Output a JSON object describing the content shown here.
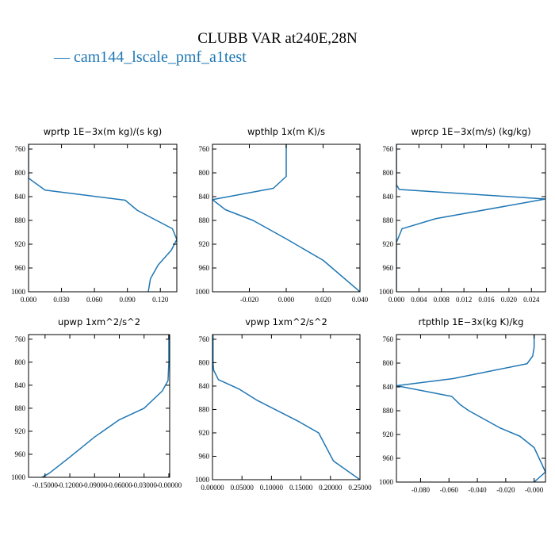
{
  "title": "CLUBB VAR at240E,28N",
  "legend": {
    "label": "— cam144_lscale_pmf_a1test",
    "color": "#1f77b4"
  },
  "chart_data": [
    {
      "type": "line",
      "title": "wprtp  1E−3x(m kg)/(s kg)",
      "xlim": [
        0.0,
        0.135
      ],
      "ylim": [
        1000,
        752
      ],
      "y_inverted": true,
      "xticks": [
        0.0,
        0.03,
        0.06,
        0.09,
        0.12
      ],
      "xtick_labels": [
        "0.000",
        "0.030",
        "0.060",
        "0.090",
        "0.120"
      ],
      "yticks": [
        760,
        800,
        840,
        880,
        920,
        960,
        1000
      ],
      "ytick_labels": [
        "760",
        "800",
        "840",
        "880",
        "920",
        "960",
        "1000"
      ],
      "series": [
        {
          "color": "#1f77b4",
          "x": [
            0.0,
            0.0,
            0.0,
            0.015,
            0.088,
            0.099,
            0.131,
            0.135,
            0.13,
            0.118,
            0.111,
            0.109
          ],
          "y": [
            752,
            780,
            809,
            829,
            846,
            863,
            894,
            912,
            930,
            955,
            978,
            1000
          ]
        }
      ]
    },
    {
      "type": "line",
      "title": "wpthlp  1x(m K)/s",
      "xlim": [
        -0.04,
        0.04
      ],
      "ylim": [
        1000,
        752
      ],
      "y_inverted": true,
      "xticks": [
        -0.02,
        0.0,
        0.02,
        0.04
      ],
      "xtick_labels": [
        "-0.020",
        "0.000",
        "0.020",
        "0.040"
      ],
      "yticks": [
        760,
        800,
        840,
        880,
        920,
        960,
        1000
      ],
      "ytick_labels": [
        "760",
        "800",
        "840",
        "880",
        "920",
        "960",
        "1000"
      ],
      "series": [
        {
          "color": "#1f77b4",
          "x": [
            0.0,
            0.0,
            0.0,
            -0.007,
            -0.04,
            -0.033,
            -0.018,
            0.0,
            0.02,
            0.04
          ],
          "y": [
            752,
            784,
            806,
            826,
            845,
            862,
            880,
            911,
            947,
            1000
          ]
        }
      ]
    },
    {
      "type": "line",
      "title": "wprcp  1E−3x(m/s) (kg/kg)",
      "xlim": [
        0.0,
        0.0265
      ],
      "ylim": [
        1000,
        752
      ],
      "y_inverted": true,
      "xticks": [
        0.0,
        0.004,
        0.008,
        0.012,
        0.016,
        0.02,
        0.024
      ],
      "xtick_labels": [
        "0.000",
        "0.004",
        "0.008",
        "0.012",
        "0.016",
        "0.020",
        "0.024"
      ],
      "yticks": [
        760,
        800,
        840,
        880,
        920,
        960,
        1000
      ],
      "ytick_labels": [
        "760",
        "800",
        "840",
        "880",
        "920",
        "960",
        "1000"
      ],
      "series": [
        {
          "color": "#1f77b4",
          "x": [
            0.0,
            0.0,
            0.0,
            0.0005,
            0.0265,
            0.007,
            0.001,
            0.0,
            0.0,
            0.0
          ],
          "y": [
            752,
            800,
            820,
            828,
            844,
            877,
            894,
            917,
            960,
            1000
          ]
        }
      ]
    },
    {
      "type": "line",
      "title": "upwp  1xm^2/s^2",
      "xlim": [
        -0.17,
        0.001
      ],
      "ylim": [
        1000,
        752
      ],
      "y_inverted": true,
      "xticks": [
        -0.15,
        -0.12,
        -0.09,
        -0.06,
        -0.03,
        0.0
      ],
      "xtick_labels": [
        "-0.15000",
        "-0.12000",
        "-0.09000",
        "-0.06000",
        "-0.03000",
        "-0.00000"
      ],
      "yticks": [
        760,
        800,
        840,
        880,
        920,
        960,
        1000
      ],
      "ytick_labels": [
        "760",
        "800",
        "840",
        "880",
        "920",
        "960",
        "1000"
      ],
      "series": [
        {
          "color": "#1f77b4",
          "x": [
            0.0,
            0.0,
            -0.001,
            -0.008,
            -0.03,
            -0.06,
            -0.09,
            -0.12,
            -0.145,
            -0.17
          ],
          "y": [
            752,
            800,
            832,
            850,
            880,
            900,
            930,
            965,
            993,
            1013
          ]
        }
      ]
    },
    {
      "type": "line",
      "title": "vpwp  1xm^2/s^2",
      "xlim": [
        0.0,
        0.25
      ],
      "ylim": [
        1000,
        752
      ],
      "y_inverted": true,
      "xticks": [
        0.0,
        0.05,
        0.1,
        0.15,
        0.2,
        0.25
      ],
      "xtick_labels": [
        "0.00000",
        "0.05000",
        "0.10000",
        "0.15000",
        "0.20000",
        "0.25000"
      ],
      "yticks": [
        760,
        800,
        840,
        880,
        920,
        960,
        1000
      ],
      "ytick_labels": [
        "760",
        "800",
        "840",
        "880",
        "920",
        "960",
        "1000"
      ],
      "series": [
        {
          "color": "#1f77b4",
          "x": [
            0.001,
            0.001,
            0.002,
            0.01,
            0.045,
            0.075,
            0.145,
            0.18,
            0.205,
            0.25
          ],
          "y": [
            752,
            800,
            813,
            829,
            845,
            864,
            900,
            920,
            968,
            1000
          ]
        }
      ]
    },
    {
      "type": "line",
      "title": "rtpthlp  1E−3x(kg K)/kg",
      "xlim": [
        -0.097,
        0.008
      ],
      "ylim": [
        1000,
        752
      ],
      "y_inverted": true,
      "xticks": [
        -0.08,
        -0.06,
        -0.04,
        -0.02,
        0.0
      ],
      "xtick_labels": [
        "-0.080",
        "-0.060",
        "-0.040",
        "-0.020",
        "-0.000"
      ],
      "yticks": [
        760,
        800,
        840,
        880,
        920,
        960,
        1000
      ],
      "ytick_labels": [
        "760",
        "800",
        "840",
        "880",
        "920",
        "960",
        "1000"
      ],
      "series": [
        {
          "color": "#1f77b4",
          "x": [
            0.0,
            0.0,
            -0.001,
            -0.005,
            -0.057,
            -0.097,
            -0.058,
            -0.052,
            -0.046,
            -0.024,
            -0.01,
            0.0,
            0.008,
            0.0
          ],
          "y": [
            752,
            773,
            788,
            801,
            826,
            838,
            856,
            870,
            880,
            909,
            923,
            942,
            983,
            1000
          ]
        }
      ]
    }
  ]
}
